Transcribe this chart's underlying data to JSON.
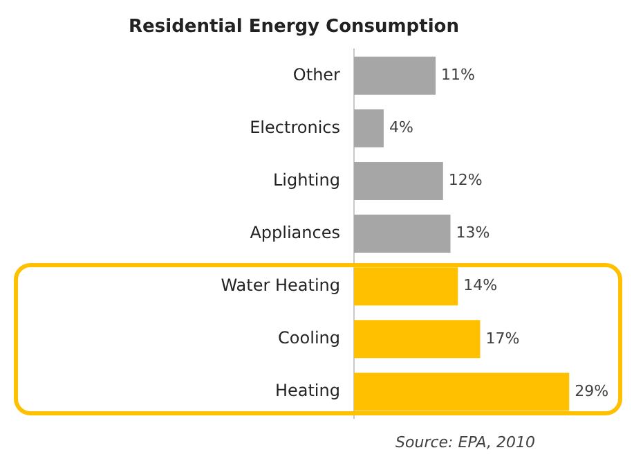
{
  "chart_data": {
    "type": "bar",
    "orientation": "horizontal",
    "title": "Residential Energy Consumption",
    "categories": [
      "Other",
      "Electronics",
      "Lighting",
      "Appliances",
      "Water Heating",
      "Cooling",
      "Heating"
    ],
    "values": [
      11,
      4,
      12,
      13,
      14,
      17,
      29
    ],
    "colors": [
      "#a6a6a6",
      "#a6a6a6",
      "#a6a6a6",
      "#a6a6a6",
      "#ffc000",
      "#ffc000",
      "#ffc000"
    ],
    "value_labels": [
      "11%",
      "4%",
      "12%",
      "13%",
      "14%",
      "17%",
      "29%"
    ],
    "legend": false,
    "annotations": [
      "Source: EPA, 2010"
    ]
  }
}
